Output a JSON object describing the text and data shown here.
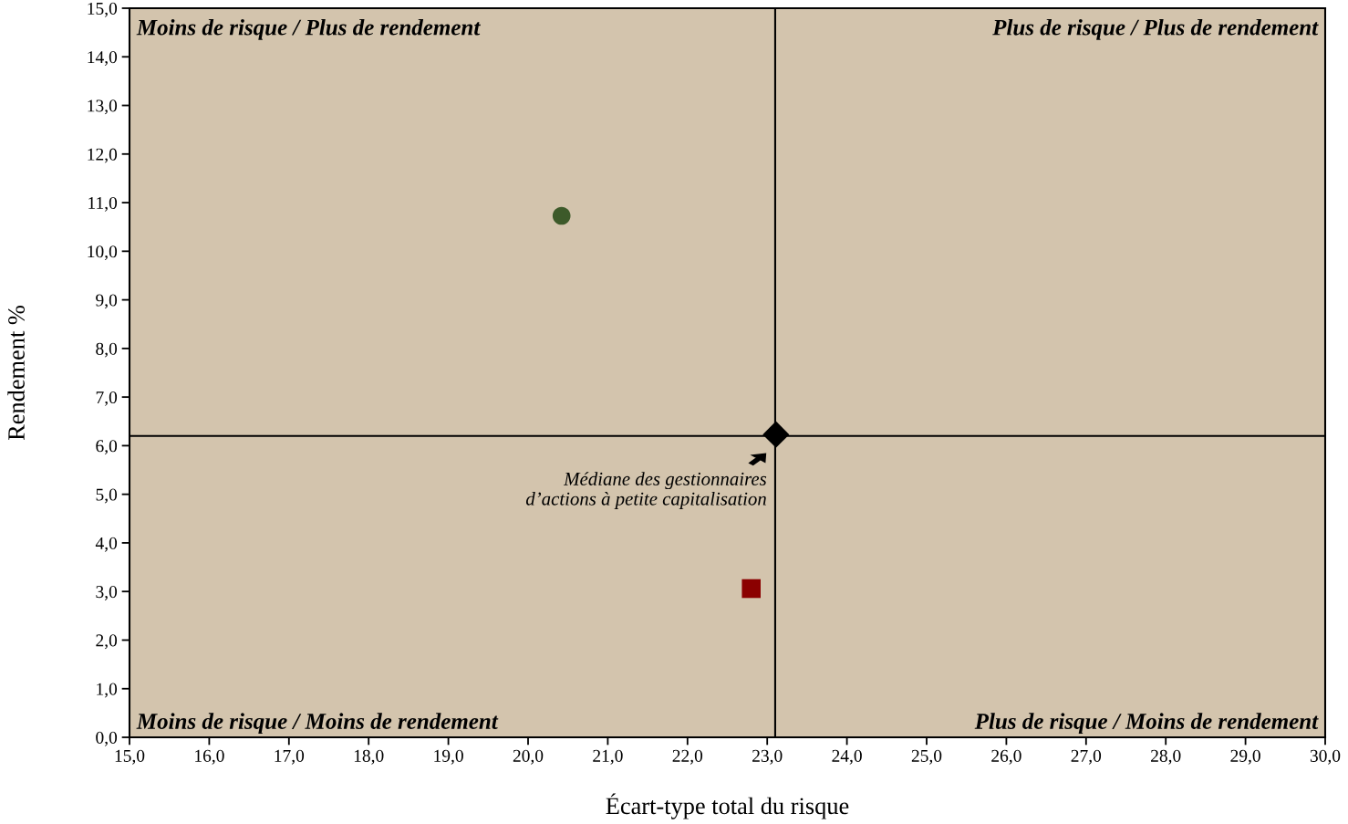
{
  "chart_data": {
    "type": "scatter",
    "xlabel": "Écart-type total du risque",
    "ylabel": "Rendement %",
    "series": [
      {
        "color": "#3d5a2a",
        "marker": "circle",
        "x": [
          20.42
        ],
        "values": [
          10.73
        ]
      },
      {
        "color": "#8b0000",
        "marker": "square",
        "x": [
          22.8
        ],
        "values": [
          3.06
        ]
      },
      {
        "color": "#000000",
        "marker": "diamond",
        "x": [
          23.11
        ],
        "values": [
          6.23
        ]
      }
    ],
    "xlim": [
      15,
      30
    ],
    "ylim": [
      0,
      15
    ],
    "xticks": [
      {
        "value": 15,
        "label": "15,0"
      },
      {
        "value": 16,
        "label": "16,0"
      },
      {
        "value": 17,
        "label": "17,0"
      },
      {
        "value": 18,
        "label": "18,0"
      },
      {
        "value": 19,
        "label": "19,0"
      },
      {
        "value": 20,
        "label": "20,0"
      },
      {
        "value": 21,
        "label": "21,0"
      },
      {
        "value": 22,
        "label": "22,0"
      },
      {
        "value": 23,
        "label": "23,0"
      },
      {
        "value": 24,
        "label": "24,0"
      },
      {
        "value": 25,
        "label": "25,0"
      },
      {
        "value": 26,
        "label": "26,0"
      },
      {
        "value": 27,
        "label": "27,0"
      },
      {
        "value": 28,
        "label": "28,0"
      },
      {
        "value": 29,
        "label": "29,0"
      },
      {
        "value": 30,
        "label": "30,0"
      }
    ],
    "yticks": [
      {
        "value": 0,
        "label": "0,0"
      },
      {
        "value": 1,
        "label": "1,0"
      },
      {
        "value": 2,
        "label": "2,0"
      },
      {
        "value": 3,
        "label": "3,0"
      },
      {
        "value": 4,
        "label": "4,0"
      },
      {
        "value": 5,
        "label": "5,0"
      },
      {
        "value": 6,
        "label": "6,0"
      },
      {
        "value": 7,
        "label": "7,0"
      },
      {
        "value": 8,
        "label": "8,0"
      },
      {
        "value": 9,
        "label": "9,0"
      },
      {
        "value": 10,
        "label": "10,0"
      },
      {
        "value": 11,
        "label": "11,0"
      },
      {
        "value": 12,
        "label": "12,0"
      },
      {
        "value": 13,
        "label": "13,0"
      },
      {
        "value": 14,
        "label": "14,0"
      },
      {
        "value": 15,
        "label": "15,0"
      }
    ],
    "ref_lines": [
      {
        "axis": "x",
        "value": 23.1,
        "color": "#000000",
        "line_style": "solid"
      },
      {
        "axis": "y",
        "value": 6.2,
        "color": "#000000",
        "line_style": "solid"
      }
    ],
    "annotations": [
      "Moins de risque / Plus de rendement",
      "Plus de risque / Plus de rendement",
      "Moins de risque / Moins de rendement",
      "Plus de risque / Moins de rendement",
      "Médiane des gestionnaires\nd’actions à petite capitalisation"
    ],
    "grid": false,
    "legend": false
  }
}
